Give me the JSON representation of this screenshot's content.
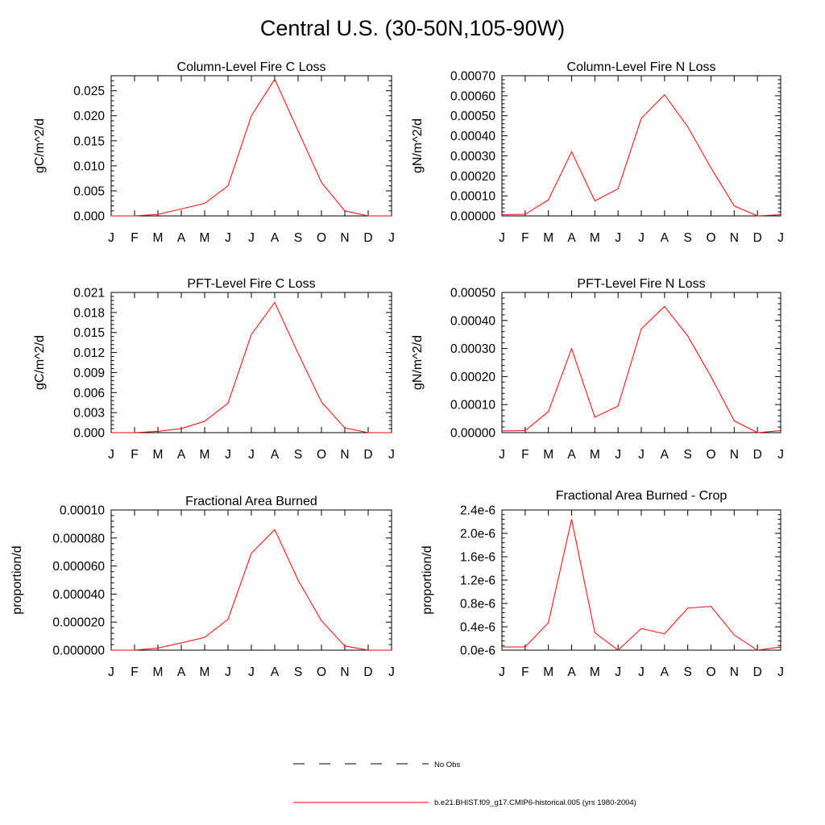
{
  "title": "Central U.S. (30-50N,105-90W)",
  "chart_data": [
    {
      "type": "line",
      "title": "Column-Level Fire C Loss",
      "ylabel": "gC/m^2/d",
      "x": [
        "J",
        "F",
        "M",
        "A",
        "M",
        "J",
        "J",
        "A",
        "S",
        "O",
        "N",
        "D",
        "J"
      ],
      "ylim": [
        0,
        0.028
      ],
      "yticks": [
        "0.000",
        "0.005",
        "0.010",
        "0.015",
        "0.020",
        "0.025"
      ],
      "ytick_values": [
        0,
        0.005,
        0.01,
        0.015,
        0.02,
        0.025
      ],
      "series": [
        {
          "values": [
            0.0,
            0.0,
            0.0003,
            0.0014,
            0.0025,
            0.006,
            0.02,
            0.0273,
            0.017,
            0.0067,
            0.001,
            0.0,
            0.0
          ]
        }
      ]
    },
    {
      "type": "line",
      "title": "Column-Level Fire N Loss",
      "ylabel": "gN/m^2/d",
      "x": [
        "J",
        "F",
        "M",
        "A",
        "M",
        "J",
        "J",
        "A",
        "S",
        "O",
        "N",
        "D",
        "J"
      ],
      "ylim": [
        0,
        0.0007
      ],
      "yticks": [
        "0.00000",
        "0.00010",
        "0.00020",
        "0.00030",
        "0.00040",
        "0.00050",
        "0.00060",
        "0.00070"
      ],
      "ytick_values": [
        0,
        0.0001,
        0.0002,
        0.0003,
        0.0004,
        0.0005,
        0.0006,
        0.0007
      ],
      "series": [
        {
          "values": [
            6e-06,
            8e-06,
            8e-05,
            0.00032,
            7.5e-05,
            0.000135,
            0.000487,
            0.000605,
            0.000445,
            0.00024,
            5e-05,
            0.0,
            6e-06
          ]
        }
      ]
    },
    {
      "type": "line",
      "title": "PFT-Level Fire C Loss",
      "ylabel": "gC/m^2/d",
      "x": [
        "J",
        "F",
        "M",
        "A",
        "M",
        "J",
        "J",
        "A",
        "S",
        "O",
        "N",
        "D",
        "J"
      ],
      "ylim": [
        0,
        0.021
      ],
      "yticks": [
        "0.000",
        "0.003",
        "0.006",
        "0.009",
        "0.012",
        "0.015",
        "0.018",
        "0.021"
      ],
      "ytick_values": [
        0,
        0.003,
        0.006,
        0.009,
        0.012,
        0.015,
        0.018,
        0.021
      ],
      "series": [
        {
          "values": [
            0.0,
            0.0,
            0.0002,
            0.0006,
            0.0017,
            0.0044,
            0.0147,
            0.0195,
            0.0119,
            0.0046,
            0.0007,
            0.0,
            0.0
          ]
        }
      ]
    },
    {
      "type": "line",
      "title": "PFT-Level Fire N Loss",
      "ylabel": "gN/m^2/d",
      "x": [
        "J",
        "F",
        "M",
        "A",
        "M",
        "J",
        "J",
        "A",
        "S",
        "O",
        "N",
        "D",
        "J"
      ],
      "ylim": [
        0,
        0.0005
      ],
      "yticks": [
        "0.00000",
        "0.00010",
        "0.00020",
        "0.00030",
        "0.00040",
        "0.00050"
      ],
      "ytick_values": [
        0,
        0.0001,
        0.0002,
        0.0003,
        0.0004,
        0.0005
      ],
      "series": [
        {
          "values": [
            6e-06,
            7e-06,
            7.5e-05,
            0.0003,
            5.5e-05,
            9.5e-05,
            0.00037,
            0.00045,
            0.000345,
            0.0002,
            4.2e-05,
            0.0,
            7e-06
          ]
        }
      ]
    },
    {
      "type": "line",
      "title": "Fractional Area Burned",
      "ylabel": "proportion/d",
      "x": [
        "J",
        "F",
        "M",
        "A",
        "M",
        "J",
        "J",
        "A",
        "S",
        "O",
        "N",
        "D",
        "J"
      ],
      "ylim": [
        0,
        0.0001
      ],
      "yticks": [
        "0.000000",
        "0.000020",
        "0.000040",
        "0.000060",
        "0.000080",
        "0.00010"
      ],
      "ytick_values": [
        0,
        2e-05,
        4e-05,
        6e-05,
        8e-05,
        0.0001
      ],
      "series": [
        {
          "values": [
            0.0,
            0.0,
            1.5e-06,
            5.2e-06,
            9.1e-06,
            2.2e-05,
            6.9e-05,
            8.6e-05,
            5e-05,
            2.1e-05,
            3e-06,
            0.0,
            0.0
          ]
        }
      ]
    },
    {
      "type": "line",
      "title": "Fractional Area Burned - Crop",
      "ylabel": "proportion/d",
      "x": [
        "J",
        "F",
        "M",
        "A",
        "M",
        "J",
        "J",
        "A",
        "S",
        "O",
        "N",
        "D",
        "J"
      ],
      "ylim": [
        0,
        2.4e-06
      ],
      "yticks": [
        "0.0e-6",
        "0.4e-6",
        "0.8e-6",
        "1.2e-6",
        "1.6e-6",
        "2.0e-6",
        "2.4e-6"
      ],
      "ytick_values": [
        0,
        4e-07,
        8e-07,
        1.2e-06,
        1.6e-06,
        2e-06,
        2.4e-06
      ],
      "series": [
        {
          "values": [
            5.5e-08,
            5.5e-08,
            4.7e-07,
            2.24e-06,
            3e-07,
            0.0,
            3.7e-07,
            2.8e-07,
            7.2e-07,
            7.5e-07,
            2.6e-07,
            0.0,
            5.5e-08
          ]
        }
      ]
    }
  ],
  "legend": [
    {
      "label": "No Obs",
      "style": "dashed",
      "color": "#000000"
    },
    {
      "label": "b.e21.BHIST.f09_g17.CMIP6-historical.005 (yrs 1980-2004)",
      "style": "solid",
      "color": "#ff0000"
    }
  ],
  "colors": {
    "series": "#ff0000",
    "axis": "#000000"
  }
}
